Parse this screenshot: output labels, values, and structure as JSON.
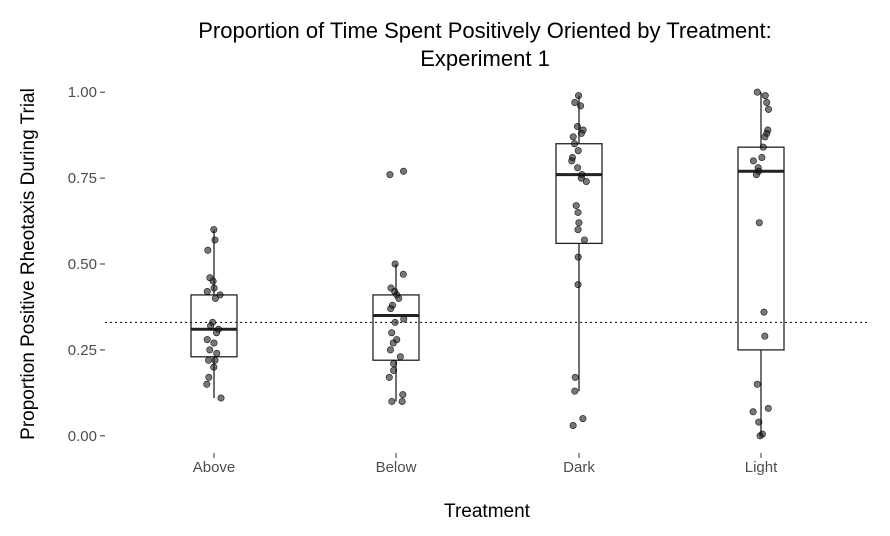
{
  "chart_data": {
    "type": "box",
    "title_line1": "Proportion of Time Spent Positively Oriented by Treatment:",
    "title_line2": "Experiment 1",
    "xlabel": "Treatment",
    "ylabel": "Proportion Positive Rheotaxis During Trial",
    "ylim": [
      -0.05,
      1.05
    ],
    "yticks": [
      0.0,
      0.25,
      0.5,
      0.75,
      1.0
    ],
    "ytick_labels": [
      "0.00",
      "0.25",
      "0.50",
      "0.75",
      "1.00"
    ],
    "reference_line": 0.33,
    "grid": false,
    "categories": [
      "Above",
      "Below",
      "Dark",
      "Light"
    ],
    "boxes": [
      {
        "q1": 0.23,
        "median": 0.31,
        "q3": 0.41,
        "whisker_low": 0.11,
        "whisker_high": 0.6
      },
      {
        "q1": 0.22,
        "median": 0.35,
        "q3": 0.41,
        "whisker_low": 0.1,
        "whisker_high": 0.5
      },
      {
        "q1": 0.56,
        "median": 0.76,
        "q3": 0.85,
        "whisker_low": 0.13,
        "whisker_high": 0.99
      },
      {
        "q1": 0.25,
        "median": 0.77,
        "q3": 0.84,
        "whisker_low": 0.0,
        "whisker_high": 1.0
      }
    ],
    "points": [
      [
        0.6,
        0.57,
        0.54,
        0.46,
        0.45,
        0.43,
        0.42,
        0.41,
        0.4,
        0.33,
        0.32,
        0.31,
        0.3,
        0.28,
        0.27,
        0.25,
        0.24,
        0.22,
        0.22,
        0.2,
        0.17,
        0.15,
        0.11
      ],
      [
        0.77,
        0.76,
        0.5,
        0.47,
        0.43,
        0.42,
        0.41,
        0.4,
        0.38,
        0.37,
        0.34,
        0.33,
        0.3,
        0.28,
        0.27,
        0.25,
        0.23,
        0.21,
        0.19,
        0.17,
        0.12,
        0.1,
        0.1
      ],
      [
        0.99,
        0.97,
        0.96,
        0.9,
        0.89,
        0.88,
        0.87,
        0.85,
        0.83,
        0.81,
        0.8,
        0.78,
        0.76,
        0.75,
        0.74,
        0.67,
        0.65,
        0.62,
        0.6,
        0.57,
        0.52,
        0.44,
        0.17,
        0.13,
        0.05,
        0.03
      ],
      [
        1.0,
        0.99,
        0.97,
        0.95,
        0.89,
        0.88,
        0.87,
        0.84,
        0.81,
        0.8,
        0.78,
        0.77,
        0.76,
        0.62,
        0.36,
        0.29,
        0.15,
        0.08,
        0.07,
        0.04,
        0.005,
        0.0
      ]
    ]
  }
}
